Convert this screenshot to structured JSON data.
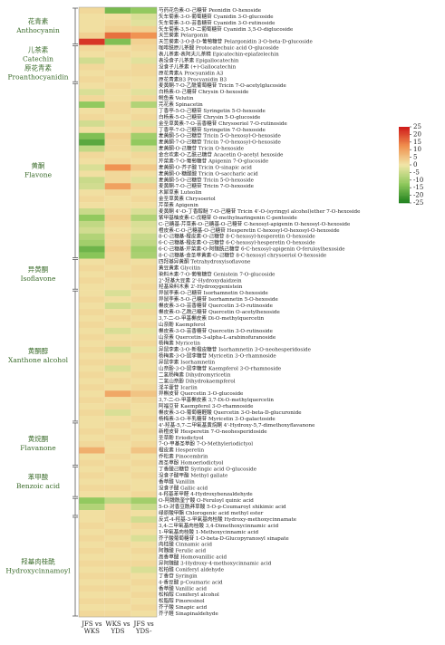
{
  "chart_data": {
    "type": "heatmap",
    "columns": [
      [
        "JFS vs",
        "WKS"
      ],
      [
        "WKS vs",
        "YDS"
      ],
      [
        "JFS vs",
        "YDS-"
      ]
    ],
    "colormap": [
      "#1b7f1b",
      "#8ec85c",
      "#f1e6a8",
      "#f0904e",
      "#cf1a1a"
    ],
    "colorbar": {
      "lim": [
        -25,
        25
      ],
      "ticks": [
        25,
        20,
        15,
        10,
        5,
        0,
        -5,
        -10,
        -15,
        -20,
        -25
      ]
    },
    "groups": [
      {
        "label": [
          "花青素",
          "Anthocyanin"
        ],
        "rows": [
          {
            "label": "芍药花色素-O-己糖苷 Peonidin O-hexoside",
            "values": [
              2,
              -15,
              -12
            ]
          },
          {
            "label": "矢车菊素-3-O-葡萄糖苷 Cyanidin 3-O-glucoside",
            "values": [
              1,
              1,
              -3
            ]
          },
          {
            "label": "矢车菊素-3-O-芸香糖苷 Cyanidin 3-O-rutinoside",
            "values": [
              1,
              2,
              -2
            ]
          },
          {
            "label": "矢车菊素-3,5-O-二葡萄糖苷 Cyanidin 3,5-O-diglucoside",
            "values": [
              1,
              3,
              3
            ]
          },
          {
            "label": "天竺葵素 Pelargonin",
            "values": [
              3,
              16,
              12
            ]
          },
          {
            "label": "天竺葵素-3-O-β-D-葡萄糖苷 Pelargonidin 3-O-beta-D-glucoside",
            "values": [
              22,
              -14,
              3
            ]
          }
        ]
      },
      {
        "label": [
          "儿茶素",
          "Catechin",
          "原花青素",
          "Proanthocyanidin"
        ],
        "rows": [
          {
            "label": "咖啡酰原儿茶酸 Protocatechuic acid O-glucoside",
            "values": [
              2,
              1,
              2
            ]
          },
          {
            "label": "表儿茶素-表阿夫儿茶精 Epicatechin-epiafzelechin",
            "values": [
              1,
              2,
              1
            ]
          },
          {
            "label": "表没食子儿茶素 Epigallocatechin",
            "values": [
              -4,
              1,
              -2
            ]
          },
          {
            "label": "没食子儿茶素 (+)-Gallocatechin",
            "values": [
              2,
              1,
              2
            ]
          },
          {
            "label": "原花青素A Procyanidin A3",
            "values": [
              1,
              2,
              2
            ]
          },
          {
            "label": "原花青素B3 Procyanidin B3",
            "values": [
              2,
              1,
              1
            ]
          }
        ]
      },
      {
        "label": [
          "黄酮",
          "Flavone"
        ],
        "rows": [
          {
            "label": "麦黄酮-7-O-乙酰葡萄糖苷 Tricin 7-O-acetylglucoside",
            "values": [
              1,
              2,
              1
            ]
          },
          {
            "label": "白杨素-O-己糖苷 Chrysin O-hexoside",
            "values": [
              -3,
              1,
              -2
            ]
          },
          {
            "label": "鲵鱼素 Velutin",
            "values": [
              2,
              1,
              2
            ]
          },
          {
            "label": "芫花素 Spinacetin",
            "values": [
              -12,
              2,
              -8
            ]
          },
          {
            "label": "丁香亭-5-O-己糖苷 Syringetin 5-O-hexoside",
            "values": [
              1,
              2,
              1
            ]
          },
          {
            "label": "白杨素-5-O-己糖苷 Chrysin 5-O-glucoside",
            "values": [
              2,
              1,
              2
            ]
          },
          {
            "label": "金圣草黄素-7-O-芸香糖苷 Chrysoeriol 7-O-rutinoside",
            "values": [
              -4,
              2,
              -2
            ]
          },
          {
            "label": "丁香亭-7-O-己糖苷 Syringetin 7-O-hexoside",
            "values": [
              1,
              1,
              2
            ]
          },
          {
            "label": "麦黄酮-5-O-己糖苷 Tricin 5-O-hexosyl-O-hexoside",
            "values": [
              -14,
              3,
              -10
            ]
          },
          {
            "label": "麦黄酮-7-O-己糖苷 Tricin 7-O-hexosyl-O-hexoside",
            "values": [
              -18,
              2,
              -12
            ]
          },
          {
            "label": "麦黄酮-O-己糖苷 Tricin O-hexoside",
            "values": [
              -6,
              2,
              -3
            ]
          },
          {
            "label": "金合欢素-O-乙酰己糖苷 Acacetin O-acetyl hexoside",
            "values": [
              2,
              1,
              2
            ]
          },
          {
            "label": "芹菜素-7-O-葡萄糖苷 Apigenin 7-O-glucoside",
            "values": [
              1,
              2,
              1
            ]
          },
          {
            "label": "麦黄酮-O-芥子酸 Tricin O-sinapic acid",
            "values": [
              -3,
              12,
              4
            ]
          },
          {
            "label": "麦黄酮-O-糖醛酸 Tricin O-saccharic acid",
            "values": [
              1,
              2,
              1
            ]
          },
          {
            "label": "麦黄酮-5-O-己糖苷 Tricin 5-O-hexoside",
            "values": [
              -5,
              2,
              -2
            ]
          },
          {
            "label": "麦黄酮-7-O-己糖苷 Tricin 7-O-hexoside",
            "values": [
              -4,
              10,
              3
            ]
          },
          {
            "label": "木犀草素 Luteolin",
            "values": [
              1,
              2,
              1
            ]
          },
          {
            "label": "金圣草黄素 Chrysoeriol",
            "values": [
              2,
              1,
              2
            ]
          },
          {
            "label": "芹菜素 Apigenin",
            "values": [
              1,
              1,
              1
            ]
          },
          {
            "label": "麦黄酮 4'-O-丁香醇醚 7-O-己糖苷 Tricin 4'-O-(syringyl alcohol)ether 7-O-hexoside",
            "values": [
              -5,
              2,
              -3
            ]
          },
          {
            "label": "紫甲基柚皮素-C-戊糖苷 O-methylnaringenin C-pentoside",
            "values": [
              -12,
              3,
              -8
            ]
          },
          {
            "label": "C-己糖基-芹菜素-O-己糖基-O-己糖苷 C-hexosyl-apigenin O-hexosyl-O-hexoside",
            "values": [
              -6,
              2,
              -3
            ]
          },
          {
            "label": "橙皮素-C-O-己糖基-O-己糖苷 Hesperetin C-hexosyl-O-hexosyl-O-hexoside",
            "values": [
              -4,
              1,
              -2
            ]
          },
          {
            "label": "8-C-己糖基-橙皮素-O-己糖苷 8-C-hexosyl-hesperetin O-hexoside",
            "values": [
              -8,
              2,
              -5
            ]
          },
          {
            "label": "6-C-己糖基-橙皮素-O-己糖苷 6-C-hexosyl-hesperetin O-hexoside",
            "values": [
              -10,
              2,
              -6
            ]
          },
          {
            "label": "6-C-己糖基-芹菜素-O-阿魏酰己糖苷 6-C-hexosyl-apigenin O-feruloylhexoside",
            "values": [
              -16,
              3,
              -10
            ]
          },
          {
            "label": "8-C-己糖基-金圣草黄素-O-己糖苷 8-C-hexosyl chrysoeriol O-hexoside",
            "values": [
              -13,
              2,
              -9
            ]
          }
        ]
      },
      {
        "label": [
          "异黄酮",
          "Isoflavone"
        ],
        "rows": [
          {
            "label": "四羟基异黄酮 Tetrahydroxyisoflavone",
            "values": [
              1,
              2,
              1
            ]
          },
          {
            "label": "黄豆黄素 Glycitin",
            "values": [
              2,
              1,
              2
            ]
          },
          {
            "label": "染料木素-7-O-葡萄糖苷 Genistein 7-O-glucoside",
            "values": [
              1,
              2,
              2
            ]
          },
          {
            "label": "2'-羟基大豆素 2'-Hydroxydaidzein",
            "values": [
              2,
              1,
              1
            ]
          },
          {
            "label": "羟基染料木素 2'-Hydroxygenistein",
            "values": [
              1,
              1,
              2
            ]
          }
        ]
      },
      {
        "label": [
          "黄酮醇",
          "Xanthone alcohol"
        ],
        "rows": [
          {
            "label": "异鼠李素-O-己糖苷 Isorhamnetin O-hexoside",
            "values": [
              1,
              -3,
              1
            ]
          },
          {
            "label": "异鼠李素-5-O-己糖苷 Isorhamnetin 5-O-hexoside",
            "values": [
              2,
              1,
              2
            ]
          },
          {
            "label": "槲皮素-3-O-芸香糖苷 Quercetin 3-O-rutinoside",
            "values": [
              1,
              -4,
              -2
            ]
          },
          {
            "label": "槲皮素-O-乙酰己糖苷 Quercetin O-acetylhexoside",
            "values": [
              2,
              1,
              2
            ]
          },
          {
            "label": "3,7-二-O-甲基槲皮素 Di-O-methylquercetin",
            "values": [
              1,
              2,
              1
            ]
          },
          {
            "label": "山奈酚 Kaempferol",
            "values": [
              2,
              1,
              2
            ]
          },
          {
            "label": "槲皮素-3-O-芸香糖苷 Quercetin 3-O-rutinoside",
            "values": [
              1,
              -3,
              -1
            ]
          },
          {
            "label": "山奈素 Quercetin-3-alpha-L-arabinofuranoside",
            "values": [
              2,
              1,
              1
            ]
          },
          {
            "label": "杨梅素 Myricetin",
            "values": [
              1,
              2,
              2
            ]
          },
          {
            "label": "异鼠李素-3-O-新橙皮糖苷 Isorhamnetin 3-O-neohesperidoside",
            "values": [
              2,
              -4,
              -1
            ]
          },
          {
            "label": "杨梅素-3-O-鼠李糖苷 Myricetin 3-O-rhamnoside",
            "values": [
              1,
              1,
              2
            ]
          },
          {
            "label": "异鼠李素 Isorhamnetin",
            "values": [
              2,
              2,
              1
            ]
          },
          {
            "label": "山奈酚-3-O-鼠李糖苷 Kaempferol 3-O-rhamnoside",
            "values": [
              1,
              -3,
              1
            ]
          },
          {
            "label": "二氢杨梅素 Dihydromyricetin",
            "values": [
              2,
              1,
              2
            ]
          },
          {
            "label": "二氢山奈酚 Dihydrokaempferol",
            "values": [
              1,
              2,
              1
            ]
          },
          {
            "label": "淫羊藿苷 Icariin",
            "values": [
              2,
              1,
              2
            ]
          },
          {
            "label": "异槲皮苷 Quercetin 3-O-glucoside",
            "values": [
              1,
              9,
              5
            ]
          },
          {
            "label": "3,7-二-O-甲基槲皮素 3,7-Di-O-methylquercetin",
            "values": [
              2,
              1,
              2
            ]
          },
          {
            "label": "阿福豆苷 Kaempferol 3-O-rhamnoside",
            "values": [
              1,
              2,
              1
            ]
          },
          {
            "label": "槲皮素-3-O-葡萄糖醛酸 Quercetin 3-O-beta-D-glucuronide",
            "values": [
              2,
              -3,
              1
            ]
          },
          {
            "label": "杨梅素-3-O-半乳糖苷 Myricetin 3-O-galactoside",
            "values": [
              1,
              1,
              2
            ]
          }
        ]
      },
      {
        "label": [
          "黄烷酮",
          "Flavanone"
        ],
        "rows": [
          {
            "label": "4'-羟基-5,7-二甲氧基黄烷酮 4'-Hydroxy-5,7-dimethoxyflavanone",
            "values": [
              1,
              2,
              1
            ]
          },
          {
            "label": "新橙皮苷 Hesperetin 7-O-neohesperidoside",
            "values": [
              2,
              1,
              2
            ]
          },
          {
            "label": "圣草酚 Eriodictyol",
            "values": [
              1,
              2,
              1
            ]
          },
          {
            "label": "7-O-甲基圣草酚 7-O-Methyleriodictyol",
            "values": [
              2,
              1,
              2
            ]
          },
          {
            "label": "橙皮素 Hesperetin",
            "values": [
              8,
              1,
              5
            ]
          },
          {
            "label": "乔松素 Pinocembrin",
            "values": [
              1,
              2,
              1
            ]
          },
          {
            "label": "高圣草酚 Homoeriodictyol",
            "values": [
              2,
              1,
              2
            ]
          }
        ]
      },
      {
        "label": [
          "苯甲酸",
          "Benzoic acid"
        ],
        "rows": [
          {
            "label": "丁香酸己糖苷 Syringic acid O-glucoside",
            "values": [
              1,
              2,
              1
            ]
          },
          {
            "label": "没食子酸甲酯 Methyl gallate",
            "values": [
              2,
              1,
              2
            ]
          },
          {
            "label": "香草醛 Vanillin",
            "values": [
              1,
              1,
              1
            ]
          },
          {
            "label": "没食子酸 Gallic acid",
            "values": [
              2,
              2,
              1
            ]
          },
          {
            "label": "4-羟基苯甲醛 4-Hydroxybenzaldehyde",
            "values": [
              1,
              1,
              2
            ]
          }
        ]
      },
      {
        "label": [],
        "rows": [
          {
            "label": "O-阿魏酰奎宁酸 O-Feruloyl quinic acid",
            "values": [
              -12,
              -6,
              -10
            ]
          },
          {
            "label": "5-O-对香豆酰莽草酸 5-O-p-Coumaroyl shikimic acid",
            "values": [
              -8,
              2,
              -5
            ]
          },
          {
            "label": "绿原酸甲酯 Chlorogenic acid methyl ester",
            "values": [
              1,
              2,
              1
            ]
          }
        ]
      },
      {
        "label": [
          "羟基肉桂酰",
          "Hydroxycinnamoyl"
        ],
        "rows": [
          {
            "label": "反式-4-羟基-3-甲氧基肉桂酸 Hydroxy-methoxycinnamate",
            "values": [
              1,
              2,
              -4
            ]
          },
          {
            "label": "3,4-二甲氧基肉桂酸 3,4-Dimethoxycinnamic acid",
            "values": [
              2,
              1,
              2
            ]
          },
          {
            "label": "1-甲氧基肉桂酸 1-Methoxycinnamic acid",
            "values": [
              1,
              2,
              1
            ]
          },
          {
            "label": "芥子酸葡萄糖苷 1-O-beta-D-Glucopyranosyl sinapate",
            "values": [
              2,
              1,
              -3
            ]
          },
          {
            "label": "肉桂酸 Cinnamic acid",
            "values": [
              1,
              2,
              1
            ]
          },
          {
            "label": "阿魏酸 Ferulic acid",
            "values": [
              2,
              1,
              2
            ]
          },
          {
            "label": "高香草酸 Homovanillic acid",
            "values": [
              1,
              1,
              1
            ]
          },
          {
            "label": "异阿魏酸 3-Hydroxy-4-methoxycinnamic acid",
            "values": [
              2,
              2,
              2
            ]
          },
          {
            "label": "松柏醛 Coniferyl aldehyde",
            "values": [
              1,
              1,
              -3
            ]
          },
          {
            "label": "丁香苷 Syringin",
            "values": [
              2,
              2,
              1
            ]
          },
          {
            "label": "4-香豆酸 p-Coumaric acid",
            "values": [
              1,
              1,
              2
            ]
          },
          {
            "label": "香草酸 Vanillic acid",
            "values": [
              2,
              2,
              1
            ]
          },
          {
            "label": "松柏醇 Coniferyl alcohol",
            "values": [
              1,
              1,
              2
            ]
          },
          {
            "label": "松脂醇 Pinoresinol",
            "values": [
              2,
              2,
              1
            ]
          },
          {
            "label": "芥子酸 Sinapic acid",
            "values": [
              1,
              1,
              2
            ]
          },
          {
            "label": "芥子醛 Sinapinaldehyde",
            "values": [
              2,
              2,
              1
            ]
          }
        ]
      }
    ]
  }
}
